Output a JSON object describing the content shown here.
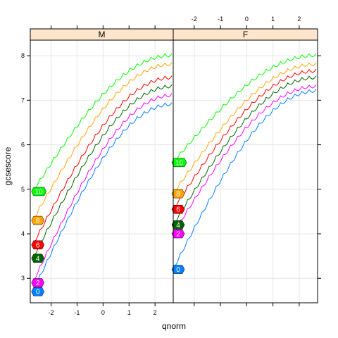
{
  "chart_data": {
    "type": "line",
    "xlabel": "qnorm",
    "ylabel": "gcsescore",
    "xlim": [
      -2.8,
      2.7
    ],
    "ylim": [
      2.45,
      8.35
    ],
    "x_ticks": [
      -2,
      -1,
      0,
      1,
      2
    ],
    "y_ticks": [
      3,
      4,
      5,
      6,
      7,
      8
    ],
    "grid": true,
    "panels": [
      {
        "strip": "M",
        "series": [
          {
            "name": "0",
            "color": "#0080ff",
            "start": [
              -2.7,
              2.7
            ],
            "end": [
              2.65,
              6.9
            ]
          },
          {
            "name": "2",
            "color": "#ff00ff",
            "start": [
              -2.7,
              2.9
            ],
            "end": [
              2.65,
              7.1
            ]
          },
          {
            "name": "4",
            "color": "#006400",
            "start": [
              -2.7,
              3.45
            ],
            "end": [
              2.65,
              7.3
            ]
          },
          {
            "name": "6",
            "color": "#ff0000",
            "start": [
              -2.7,
              3.75
            ],
            "end": [
              2.65,
              7.5
            ]
          },
          {
            "name": "8",
            "color": "#ffa500",
            "start": [
              -2.7,
              4.3
            ],
            "end": [
              2.65,
              7.8
            ]
          },
          {
            "name": "10",
            "color": "#00ff00",
            "start": [
              -2.7,
              4.95
            ],
            "end": [
              2.65,
              8.0
            ]
          }
        ]
      },
      {
        "strip": "F",
        "series": [
          {
            "name": "0",
            "color": "#0080ff",
            "start": [
              -2.8,
              3.2
            ],
            "end": [
              2.65,
              7.2
            ]
          },
          {
            "name": "2",
            "color": "#ff00ff",
            "start": [
              -2.8,
              4.0
            ],
            "end": [
              2.65,
              7.3
            ]
          },
          {
            "name": "4",
            "color": "#006400",
            "start": [
              -2.8,
              4.2
            ],
            "end": [
              2.65,
              7.5
            ]
          },
          {
            "name": "6",
            "color": "#ff0000",
            "start": [
              -2.8,
              4.55
            ],
            "end": [
              2.65,
              7.65
            ]
          },
          {
            "name": "8",
            "color": "#ffa500",
            "start": [
              -2.8,
              4.9
            ],
            "end": [
              2.65,
              7.8
            ]
          },
          {
            "name": "10",
            "color": "#00ff00",
            "start": [
              -2.8,
              5.6
            ],
            "end": [
              2.65,
              8.0
            ]
          }
        ]
      }
    ]
  }
}
